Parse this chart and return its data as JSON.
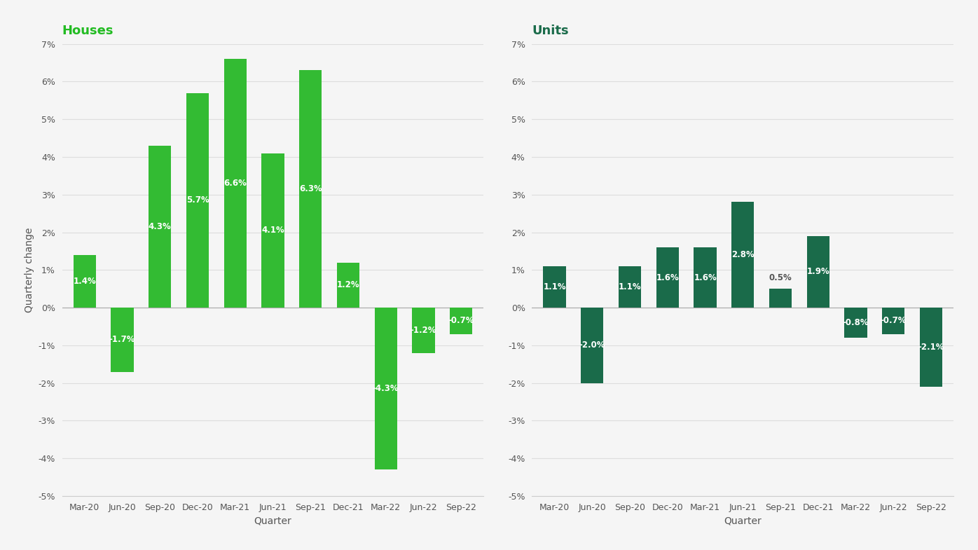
{
  "houses": {
    "title": "Houses",
    "title_color": "#22bb22",
    "quarters": [
      "Mar-20",
      "Jun-20",
      "Sep-20",
      "Dec-20",
      "Mar-21",
      "Jun-21",
      "Sep-21",
      "Dec-21",
      "Mar-22",
      "Jun-22",
      "Sep-22"
    ],
    "values": [
      1.4,
      -1.7,
      4.3,
      5.7,
      6.6,
      4.1,
      6.3,
      1.2,
      -4.3,
      -1.2,
      -0.7
    ],
    "bar_color": "#33bb33",
    "xlabel": "Quarter",
    "ylabel": "Quarterly change"
  },
  "units": {
    "title": "Units",
    "title_color": "#1a6b4a",
    "quarters": [
      "Mar-20",
      "Jun-20",
      "Sep-20",
      "Dec-20",
      "Mar-21",
      "Jun-21",
      "Sep-21",
      "Dec-21",
      "Mar-22",
      "Jun-22",
      "Sep-22"
    ],
    "values": [
      1.1,
      -2.0,
      1.1,
      1.6,
      1.6,
      2.8,
      0.5,
      1.9,
      -0.8,
      -0.7,
      -2.1
    ],
    "bar_color": "#1a6b4a",
    "xlabel": "Quarter"
  },
  "background_color": "#f5f5f5",
  "ytick_vals": [
    -5,
    -4,
    -3,
    -2,
    -1,
    0,
    1,
    2,
    3,
    4,
    5,
    6,
    7
  ],
  "title_fontsize": 13,
  "label_fontsize": 9
}
